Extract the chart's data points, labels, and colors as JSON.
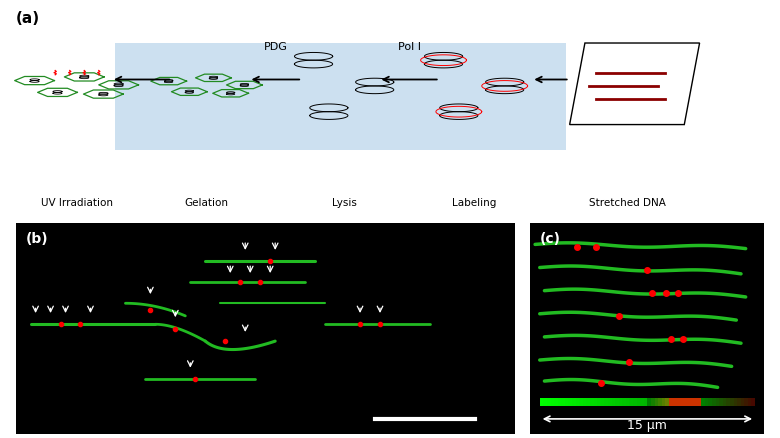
{
  "fig_width": 7.8,
  "fig_height": 4.38,
  "dpi": 100,
  "panel_a_label": "(a)",
  "panel_b_label": "(b)",
  "panel_c_label": "(c)",
  "step_labels": [
    "UV Irradiation",
    "Gelation",
    "Lysis",
    "Labeling",
    "Stretched DNA"
  ],
  "between_labels": [
    "PDG",
    "Pol I"
  ],
  "scale_bar_text": "15 μm",
  "bg_color_box": "#cce0f0",
  "green_fiber": "#22cc22",
  "red_spot": "#dd0000",
  "white": "#ffffff",
  "black": "#000000"
}
